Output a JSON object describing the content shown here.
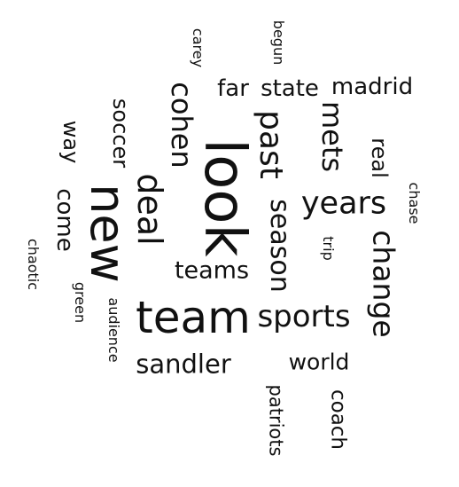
{
  "words": {
    "look": "look",
    "new": "new",
    "team": "team",
    "past": "past",
    "deal": "deal",
    "years": "years",
    "change": "change",
    "season": "season",
    "sports": "sports",
    "cohen": "cohen",
    "mets": "mets",
    "sandler": "sandler",
    "teams": "teams",
    "state": "state",
    "madrid": "madrid",
    "come": "come",
    "far": "far",
    "soccer": "soccer",
    "way": "way",
    "real": "real",
    "world": "world",
    "coach": "coach",
    "patriots": "patriots",
    "carey": "carey",
    "begun": "begun",
    "chase": "chase",
    "trip": "trip",
    "green": "green",
    "audience": "audience",
    "chaotic": "chaotic"
  }
}
